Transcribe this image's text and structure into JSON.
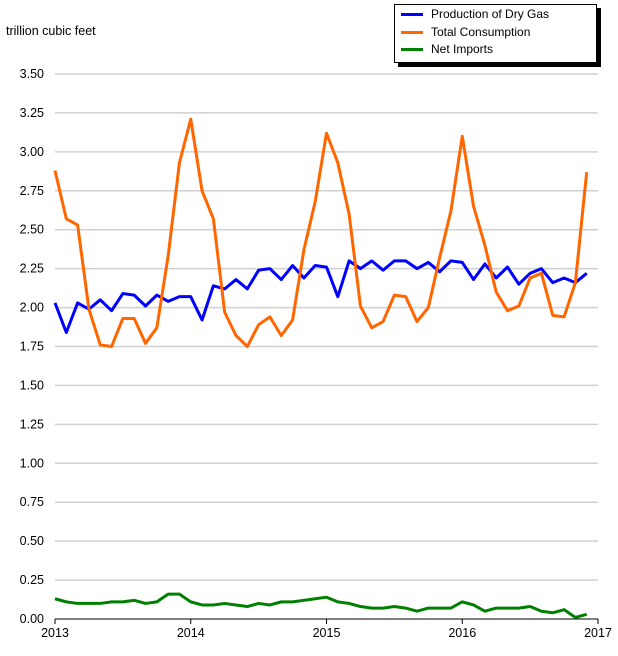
{
  "chart_data": {
    "type": "line",
    "title": "",
    "xlabel": "",
    "ylabel": "trillion cubic feet",
    "x_start": "2013-01",
    "x_frequency": "monthly",
    "xlim": [
      2013,
      2017
    ],
    "xticks": [
      "2013",
      "2014",
      "2015",
      "2016",
      "2017"
    ],
    "ylim": [
      0,
      3.5
    ],
    "yticks": [
      "0.00",
      "0.25",
      "0.50",
      "0.75",
      "1.00",
      "1.25",
      "1.50",
      "1.75",
      "2.00",
      "2.25",
      "2.50",
      "2.75",
      "3.00",
      "3.25",
      "3.50"
    ],
    "grid": true,
    "legend_position": "top-right",
    "series": [
      {
        "name": "Production of Dry Gas",
        "color": "#0000ff",
        "values": [
          2.03,
          1.84,
          2.03,
          1.99,
          2.05,
          1.98,
          2.09,
          2.08,
          2.01,
          2.08,
          2.04,
          2.07,
          2.07,
          1.92,
          2.14,
          2.12,
          2.18,
          2.12,
          2.24,
          2.25,
          2.18,
          2.27,
          2.19,
          2.27,
          2.26,
          2.07,
          2.3,
          2.25,
          2.3,
          2.24,
          2.3,
          2.3,
          2.25,
          2.29,
          2.23,
          2.3,
          2.29,
          2.18,
          2.28,
          2.19,
          2.26,
          2.15,
          2.22,
          2.25,
          2.16,
          2.19,
          2.16,
          2.22
        ]
      },
      {
        "name": "Total Consumption",
        "color": "#ff6600",
        "values": [
          2.88,
          2.57,
          2.53,
          1.99,
          1.76,
          1.75,
          1.93,
          1.93,
          1.77,
          1.87,
          2.33,
          2.93,
          3.21,
          2.75,
          2.57,
          1.97,
          1.82,
          1.75,
          1.89,
          1.94,
          1.82,
          1.92,
          2.37,
          2.68,
          3.12,
          2.93,
          2.6,
          2.01,
          1.87,
          1.91,
          2.08,
          2.07,
          1.91,
          2.0,
          2.32,
          2.62,
          3.1,
          2.65,
          2.4,
          2.1,
          1.98,
          2.01,
          2.19,
          2.22,
          1.95,
          1.94,
          2.16,
          2.87
        ]
      },
      {
        "name": "Net Imports",
        "color": "#008000",
        "values": [
          0.13,
          0.11,
          0.1,
          0.1,
          0.1,
          0.11,
          0.11,
          0.12,
          0.1,
          0.11,
          0.16,
          0.16,
          0.11,
          0.09,
          0.09,
          0.1,
          0.09,
          0.08,
          0.1,
          0.09,
          0.11,
          0.11,
          0.12,
          0.13,
          0.14,
          0.11,
          0.1,
          0.08,
          0.07,
          0.07,
          0.08,
          0.07,
          0.05,
          0.07,
          0.07,
          0.07,
          0.11,
          0.09,
          0.05,
          0.07,
          0.07,
          0.07,
          0.08,
          0.05,
          0.04,
          0.06,
          0.01,
          0.03
        ]
      }
    ]
  }
}
